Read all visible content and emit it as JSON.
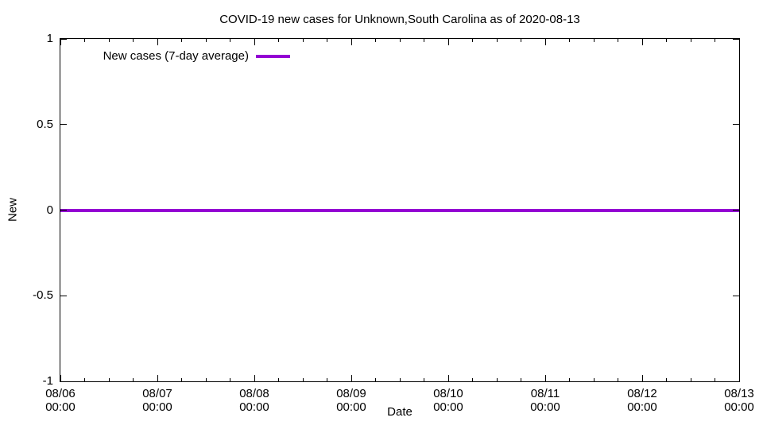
{
  "chart_data": {
    "type": "line",
    "title": "COVID-19 new cases for Unknown,South Carolina as of 2020-08-13",
    "xlabel": "Date",
    "ylabel": "New",
    "ylim": [
      -1,
      1
    ],
    "y_ticks": [
      1,
      0.5,
      0,
      -0.5,
      -1
    ],
    "y_tick_labels": [
      "1",
      "0.5",
      "0",
      "-0.5",
      "-1"
    ],
    "x_tick_dates": [
      "08/06",
      "08/07",
      "08/08",
      "08/09",
      "08/10",
      "08/11",
      "08/12",
      "08/13"
    ],
    "x_tick_times": [
      "00:00",
      "00:00",
      "00:00",
      "00:00",
      "00:00",
      "00:00",
      "00:00",
      "00:00"
    ],
    "x_minor_ticks_per_interval": 3,
    "grid": false,
    "legend": {
      "position": "top-left-inside",
      "entries": [
        {
          "label": "New cases (7-day average)",
          "color": "#9400d3"
        }
      ]
    },
    "series": [
      {
        "name": "New cases (7-day average)",
        "color": "#9400d3",
        "x": [
          "08/06 00:00",
          "08/07 00:00",
          "08/08 00:00",
          "08/09 00:00",
          "08/10 00:00",
          "08/11 00:00",
          "08/12 00:00",
          "08/13 00:00"
        ],
        "values": [
          0,
          0,
          0,
          0,
          0,
          0,
          0,
          0
        ]
      }
    ],
    "colors": {
      "axis": "#000000",
      "text": "#000000",
      "background": "#ffffff",
      "series": "#9400d3"
    }
  }
}
